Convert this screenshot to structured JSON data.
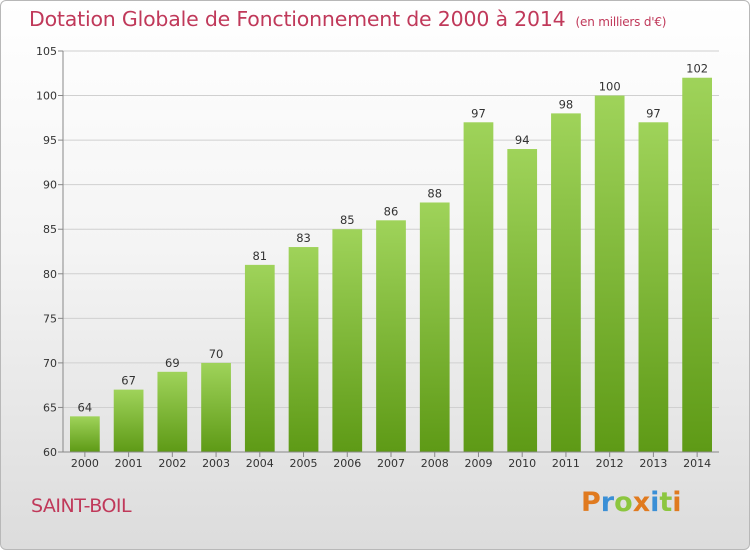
{
  "title": "Dotation Globale de Fonctionnement de 2000 à 2014",
  "subtitle": "(en milliers d'€)",
  "commune": "SAINT-BOIL",
  "logo": {
    "letters": [
      "P",
      "r",
      "o",
      "x",
      "i",
      "t",
      "i"
    ],
    "colors": [
      "#e07a1f",
      "#3a8fd6",
      "#8cc63f",
      "#e07a1f",
      "#3a8fd6",
      "#8cc63f",
      "#e07a1f"
    ]
  },
  "colors": {
    "bar_light": "#9fd35a",
    "bar_dark": "#5e9a16",
    "title": "#c0395a",
    "grid": "#d0d0d0"
  },
  "chart_data": {
    "type": "bar",
    "title": "Dotation Globale de Fonctionnement de 2000 à 2014",
    "subtitle": "(en milliers d'€)",
    "xlabel": "",
    "ylabel": "",
    "categories": [
      "2000",
      "2001",
      "2002",
      "2003",
      "2004",
      "2005",
      "2006",
      "2007",
      "2008",
      "2009",
      "2010",
      "2011",
      "2012",
      "2013",
      "2014"
    ],
    "values": [
      64,
      67,
      69,
      70,
      81,
      83,
      85,
      86,
      88,
      97,
      94,
      98,
      100,
      97,
      102
    ],
    "ylim": [
      60,
      105
    ],
    "yticks": [
      60,
      65,
      70,
      75,
      80,
      85,
      90,
      95,
      100,
      105
    ],
    "grid": true,
    "legend": "none"
  }
}
